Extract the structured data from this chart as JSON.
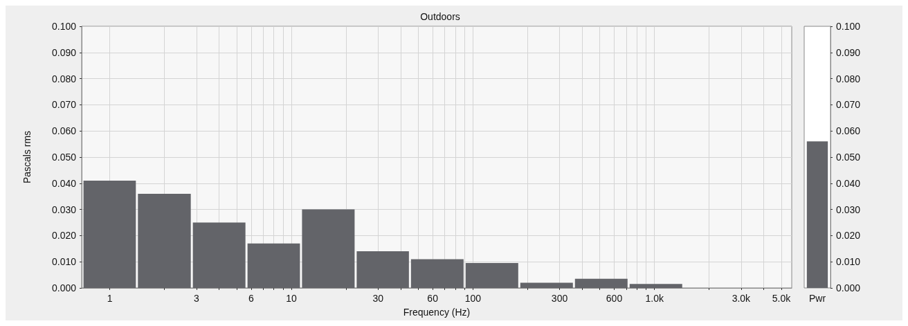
{
  "chart_data": [
    {
      "type": "histogram",
      "title": "Outdoors",
      "xlabel": "Frequency (Hz)",
      "ylabel": "Pascals rms",
      "log": "x",
      "grid": true,
      "color": "#636469",
      "bins": [
        0.707,
        1.41,
        2.83,
        5.66,
        11.3,
        22.6,
        45,
        90,
        180,
        360,
        720,
        1440
      ],
      "values": [
        0.041,
        0.036,
        0.025,
        0.017,
        0.03,
        0.014,
        0.011,
        0.0095,
        0.002,
        0.0035,
        0.0015
      ],
      "xlim": [
        0.7,
        5700
      ],
      "xticks": [
        1,
        {
          "value": 2,
          "label": null
        },
        3,
        {
          "value": 4,
          "label": null
        },
        {
          "value": 5,
          "label": null
        },
        6,
        {
          "value": 7,
          "label": null
        },
        {
          "value": 8,
          "label": null
        },
        {
          "value": 9,
          "label": null
        },
        10,
        {
          "value": 20,
          "label": null
        },
        30,
        {
          "value": 40,
          "label": null
        },
        {
          "value": 50,
          "label": null
        },
        60,
        {
          "value": 70,
          "label": null
        },
        {
          "value": 80,
          "label": null
        },
        {
          "value": 90,
          "label": null
        },
        100,
        {
          "value": 200,
          "label": null
        },
        300,
        {
          "value": 400,
          "label": null
        },
        {
          "value": 500,
          "label": null
        },
        600,
        {
          "value": 700,
          "label": null
        },
        {
          "value": 800,
          "label": null
        },
        {
          "value": 900,
          "label": null
        },
        {
          "value": 1000,
          "label": "1.0k"
        },
        {
          "value": 2000,
          "label": null
        },
        {
          "value": 3000,
          "label": "3.0k"
        },
        {
          "value": 4000,
          "label": null
        },
        {
          "value": 5000,
          "label": "5.0k"
        }
      ],
      "ylim": [
        0,
        0.1
      ],
      "yticks": [
        {
          "value": 0,
          "label": "0.000"
        },
        {
          "value": 0.01,
          "label": "0.010"
        },
        {
          "value": 0.02,
          "label": "0.020"
        },
        {
          "value": 0.03,
          "label": "0.030"
        },
        {
          "value": 0.04,
          "label": "0.040"
        },
        {
          "value": 0.05,
          "label": "0.050"
        },
        {
          "value": 0.06,
          "label": "0.060"
        },
        {
          "value": 0.07,
          "label": "0.070"
        },
        {
          "value": 0.08,
          "label": "0.080"
        },
        {
          "value": 0.09,
          "label": "0.090"
        },
        {
          "value": 0.1,
          "label": "0.100"
        }
      ]
    },
    {
      "type": "bar",
      "categories": [
        "Pwr"
      ],
      "values": [
        0.056
      ],
      "color": "#636469",
      "ylim": [
        0,
        0.1
      ],
      "yticks": [
        {
          "value": 0,
          "label": "0.000"
        },
        {
          "value": 0.01,
          "label": "0.010"
        },
        {
          "value": 0.02,
          "label": "0.020"
        },
        {
          "value": 0.03,
          "label": "0.030"
        },
        {
          "value": 0.04,
          "label": "0.040"
        },
        {
          "value": 0.05,
          "label": "0.050"
        },
        {
          "value": 0.06,
          "label": "0.060"
        },
        {
          "value": 0.07,
          "label": "0.070"
        },
        {
          "value": 0.08,
          "label": "0.080"
        },
        {
          "value": 0.09,
          "label": "0.090"
        },
        {
          "value": 0.1,
          "label": "0.100"
        }
      ]
    }
  ]
}
